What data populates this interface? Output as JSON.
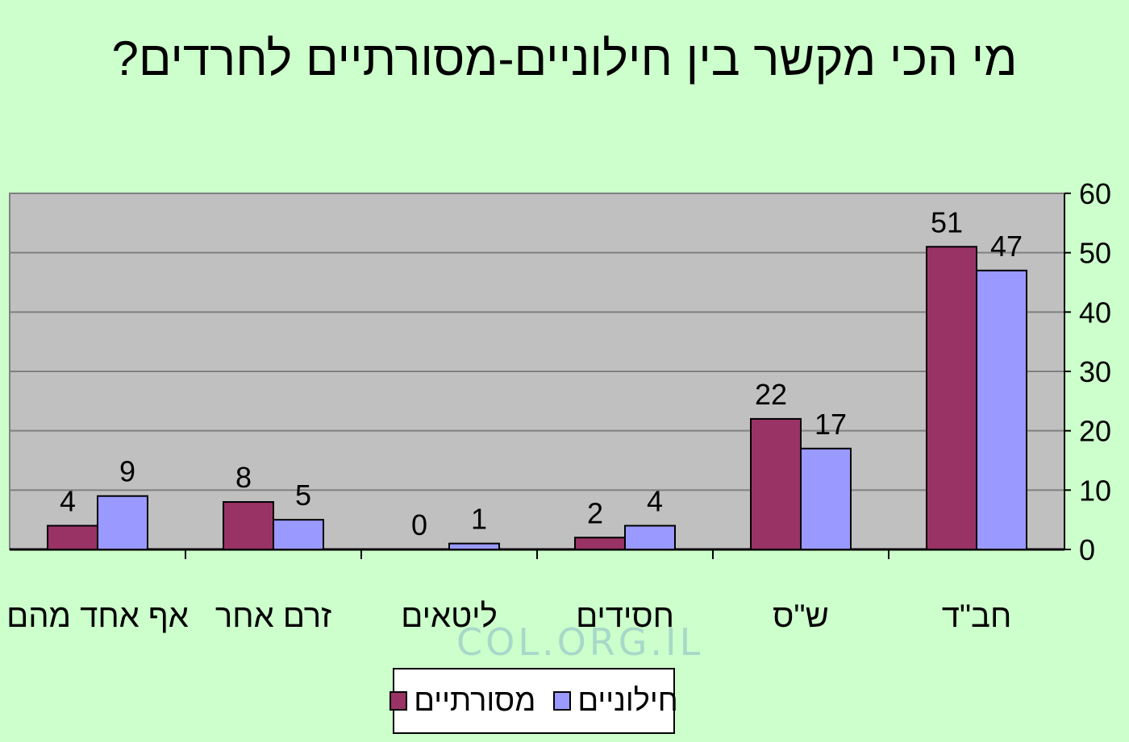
{
  "colors": {
    "background": "#ccffcc",
    "plot_area": "#c0c0c0",
    "gridline": "#808080"
  },
  "chart_data": {
    "type": "bar",
    "title": "מי הכי מקשר בין חילוניים-מסורתיים לחרדים?",
    "xlabel": "",
    "ylabel": "",
    "ylim": [
      0,
      60
    ],
    "yticks": [
      0,
      10,
      20,
      30,
      40,
      50,
      60
    ],
    "y_axis_side": "right",
    "categories_direction": "right-to-left",
    "grid": true,
    "legend_position": "bottom-center",
    "categories": [
      "חב\"ד",
      "ש\"ס",
      "חסידים",
      "ליטאים",
      "זרם אחר",
      "אף אחד מהם"
    ],
    "series": [
      {
        "name": "מסורתיים",
        "color": "#993366",
        "values": [
          51,
          22,
          2,
          0,
          8,
          4
        ]
      },
      {
        "name": "חילוניים",
        "color": "#9999ff",
        "values": [
          47,
          17,
          4,
          1,
          5,
          9
        ]
      }
    ]
  },
  "watermark": "COL.ORG.IL"
}
